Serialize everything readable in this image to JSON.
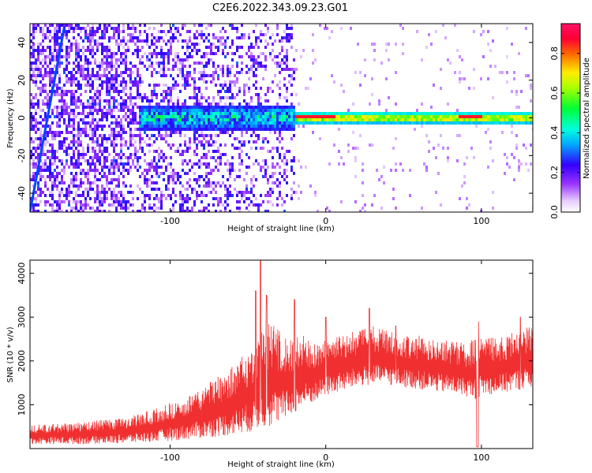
{
  "chart_data": [
    {
      "type": "heatmap",
      "title": "C2E6.2022.343.09.23.G01",
      "xlabel": "Height of straight line (km)",
      "ylabel": "Frequency (Hz)",
      "xlim": [
        -190,
        133
      ],
      "ylim": [
        -50,
        50
      ],
      "xticks": [
        -100,
        0,
        100
      ],
      "yticks": [
        -40,
        -20,
        0,
        20,
        40
      ],
      "colorbar": {
        "label": "Normalized spectral amplitude",
        "range": [
          0.0,
          0.95
        ],
        "ticks": [
          "0.0",
          "0.2",
          "0.4",
          "0.6",
          "0.8"
        ],
        "tick_values": [
          0.0,
          0.2,
          0.4,
          0.6,
          0.8
        ],
        "colormap": "gist_rainbow_r"
      },
      "features": {
        "carrier_frequency_hz": 0,
        "streak_start": [
          -190,
          -50
        ],
        "streak_end": [
          -168,
          48
        ]
      }
    },
    {
      "type": "line",
      "title": "",
      "xlabel": "Height of straight line (km)",
      "ylabel": "SNR (10 * v/v)",
      "xlim": [
        -190,
        133
      ],
      "ylim": [
        0,
        4300
      ],
      "xticks": [
        -100,
        0,
        100
      ],
      "yticks": [
        1000,
        2000,
        3000,
        4000
      ],
      "series": [
        {
          "color": "#f03030",
          "envelope_x": [
            -190,
            -160,
            -130,
            -110,
            -90,
            -75,
            -60,
            -45,
            -40,
            -35,
            -25,
            -15,
            -5,
            0,
            10,
            20,
            30,
            40,
            50,
            60,
            70,
            80,
            90,
            95,
            100,
            110,
            120,
            133
          ],
          "envelope_low": [
            100,
            100,
            120,
            150,
            200,
            250,
            300,
            400,
            450,
            500,
            700,
            900,
            1100,
            1200,
            1300,
            1400,
            1450,
            1450,
            1400,
            1350,
            1300,
            1250,
            1200,
            1100,
            1200,
            1250,
            1300,
            1400
          ],
          "envelope_high": [
            550,
            600,
            700,
            900,
            1200,
            1500,
            1900,
            2400,
            2800,
            2900,
            2500,
            2600,
            2400,
            2500,
            2600,
            2700,
            2800,
            2700,
            2600,
            2600,
            2500,
            2500,
            2400,
            2500,
            2600,
            2500,
            2700,
            2800
          ],
          "spikes": [
            [
              -45,
              3600
            ],
            [
              -42,
              4300
            ],
            [
              -38,
              3500
            ],
            [
              -20,
              3400
            ],
            [
              0,
              3000
            ],
            [
              28,
              3200
            ],
            [
              45,
              2800
            ],
            [
              98,
              2900
            ],
            [
              125,
              3000
            ]
          ]
        }
      ]
    }
  ]
}
